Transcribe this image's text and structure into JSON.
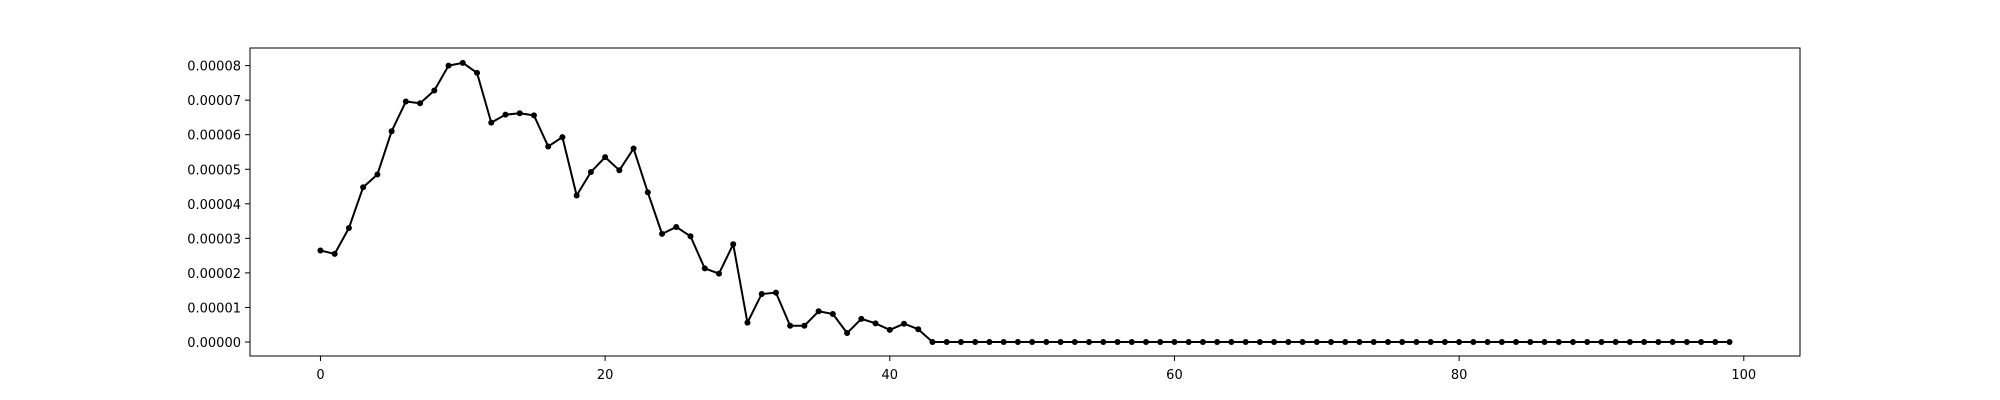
{
  "chart_data": {
    "type": "line",
    "title": "",
    "xlabel": "",
    "ylabel": "",
    "xlim": [
      -4.95,
      103.95
    ],
    "ylim": [
      -4.05e-06,
      8.51e-05
    ],
    "grid": false,
    "legend": "none",
    "x_ticks": [
      0,
      20,
      40,
      60,
      80,
      100
    ],
    "x_tick_labels": [
      "0",
      "20",
      "40",
      "60",
      "80",
      "100"
    ],
    "y_ticks": [
      0,
      1e-05,
      2e-05,
      3e-05,
      4e-05,
      5e-05,
      6e-05,
      7e-05,
      8e-05
    ],
    "y_tick_labels": [
      "0.00000",
      "0.00001",
      "0.00002",
      "0.00003",
      "0.00004",
      "0.00005",
      "0.00006",
      "0.00007",
      "0.00008"
    ],
    "series": [
      {
        "color": "#000000",
        "marker": "circle",
        "x": [
          0,
          1,
          2,
          3,
          4,
          5,
          6,
          7,
          8,
          9,
          10,
          11,
          12,
          13,
          14,
          15,
          16,
          17,
          18,
          19,
          20,
          21,
          22,
          23,
          24,
          25,
          26,
          27,
          28,
          29,
          30,
          31,
          32,
          33,
          34,
          35,
          36,
          37,
          38,
          39,
          40,
          41,
          42,
          43,
          44,
          45,
          46,
          47,
          48,
          49,
          50,
          51,
          52,
          53,
          54,
          55,
          56,
          57,
          58,
          59,
          60,
          61,
          62,
          63,
          64,
          65,
          66,
          67,
          68,
          69,
          70,
          71,
          72,
          73,
          74,
          75,
          76,
          77,
          78,
          79,
          80,
          81,
          82,
          83,
          84,
          85,
          86,
          87,
          88,
          89,
          90,
          91,
          92,
          93,
          94,
          95,
          96,
          97,
          98,
          99
        ],
        "y": [
          2.65e-05,
          2.55e-05,
          3.3e-05,
          4.48e-05,
          4.85e-05,
          6.1e-05,
          6.96e-05,
          6.91e-05,
          7.28e-05,
          8e-05,
          8.08e-05,
          7.79e-05,
          6.35e-05,
          6.58e-05,
          6.62e-05,
          6.56e-05,
          5.66e-05,
          5.93e-05,
          4.24e-05,
          4.92e-05,
          5.35e-05,
          4.97e-05,
          5.6e-05,
          4.33e-05,
          3.13e-05,
          3.33e-05,
          3.06e-05,
          2.13e-05,
          1.98e-05,
          2.83e-05,
          5.6e-06,
          1.39e-05,
          1.43e-05,
          4.7e-06,
          4.7e-06,
          8.9e-06,
          8.1e-06,
          2.6e-06,
          6.7e-06,
          5.4e-06,
          3.5e-06,
          5.3e-06,
          3.7e-06,
          0,
          0,
          0,
          0,
          0,
          0,
          0,
          0,
          0,
          0,
          0,
          0,
          0,
          0,
          0,
          0,
          0,
          0,
          0,
          0,
          0,
          0,
          0,
          0,
          0,
          0,
          0,
          0,
          0,
          0,
          0,
          0,
          0,
          0,
          0,
          0,
          0,
          0,
          0,
          0,
          0,
          0,
          0,
          0,
          0,
          0,
          0,
          0,
          0,
          0,
          0,
          0,
          0,
          0,
          0,
          0,
          0
        ]
      }
    ]
  }
}
